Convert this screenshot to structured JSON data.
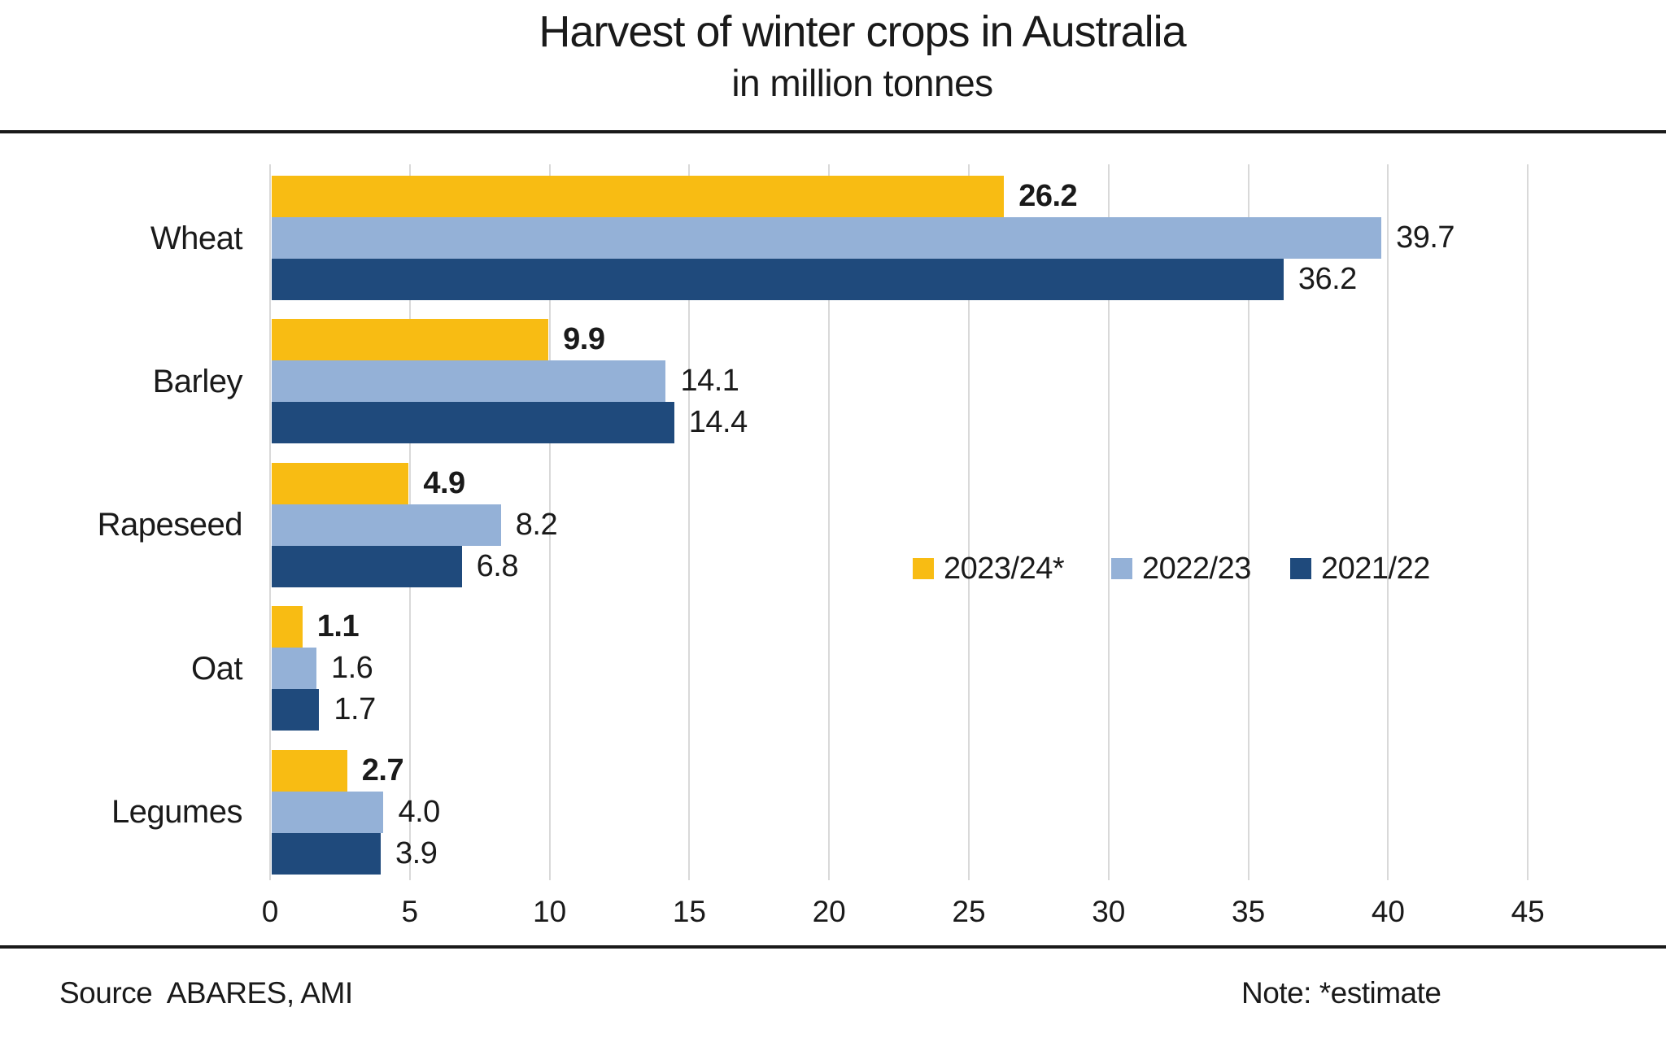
{
  "header": {
    "title": "Harvest of winter crops in Australia",
    "subtitle": "in million tonnes"
  },
  "footer": {
    "source": "Source  ABARES, AMI",
    "note": "Note: *estimate"
  },
  "colors": {
    "series_yellow": "#F8BC13",
    "series_light_blue": "#94B1D7",
    "series_dark_blue": "#1F4A7C",
    "gridline": "#D9D9D9",
    "text": "#1A1A1A",
    "divider": "#1A1A1A",
    "background": "#FFFFFF"
  },
  "chart_data": {
    "type": "bar",
    "orientation": "horizontal",
    "title": "Harvest of winter crops in Australia",
    "subtitle": "in million tonnes",
    "categories": [
      "Wheat",
      "Barley",
      "Rapeseed",
      "Oat",
      "Legumes"
    ],
    "series": [
      {
        "name": "2023/24*",
        "color": "#F8BC13",
        "values": [
          26.2,
          9.9,
          4.9,
          1.1,
          2.7
        ],
        "value_labels_bold": true
      },
      {
        "name": "2022/23",
        "color": "#94B1D7",
        "values": [
          39.7,
          14.1,
          8.2,
          1.6,
          4.0
        ],
        "value_labels_bold": false
      },
      {
        "name": "2021/22",
        "color": "#1F4A7C",
        "values": [
          36.2,
          14.4,
          6.8,
          1.7,
          3.9
        ],
        "value_labels_bold": false
      }
    ],
    "x_ticks": [
      0,
      5,
      10,
      15,
      20,
      25,
      30,
      35,
      40,
      45
    ],
    "xlim": [
      0,
      48
    ],
    "grid": true,
    "value_labels": true,
    "value_label_decimals": 1,
    "legend_position": "center-right",
    "legend_entries": [
      "2023/24*",
      "2022/23",
      "2021/22"
    ]
  }
}
